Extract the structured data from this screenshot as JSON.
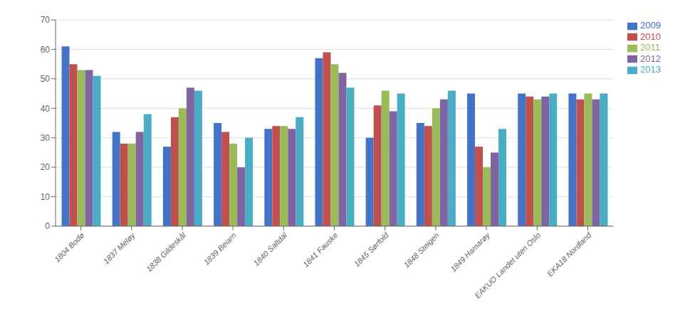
{
  "chart_data": {
    "type": "bar",
    "categories": [
      "1804 Bodø",
      "1837 Meløy",
      "1838 Gildeskål",
      "1839 Beiarn",
      "1840 Saltdal",
      "1841 Fauske",
      "1845 Sørfold",
      "1848 Steigen",
      "1849 Hamarøy",
      "EAKUO Landet uten Oslo",
      "EKA18 Nordland"
    ],
    "series": [
      {
        "name": "2009",
        "color": "#4472C4",
        "values": [
          61,
          32,
          27,
          35,
          33,
          57,
          30,
          35,
          45,
          45,
          45
        ]
      },
      {
        "name": "2010",
        "color": "#C0504D",
        "values": [
          55,
          28,
          37,
          32,
          34,
          59,
          41,
          34,
          27,
          44,
          43
        ]
      },
      {
        "name": "2011",
        "color": "#9BBB59",
        "values": [
          53,
          28,
          40,
          28,
          34,
          55,
          46,
          40,
          20,
          43,
          45
        ]
      },
      {
        "name": "2012",
        "color": "#8064A2",
        "values": [
          53,
          32,
          47,
          20,
          33,
          52,
          39,
          43,
          25,
          44,
          43
        ]
      },
      {
        "name": "2013",
        "color": "#4BACC6",
        "values": [
          51,
          38,
          46,
          30,
          37,
          47,
          45,
          46,
          33,
          45,
          45
        ]
      }
    ],
    "ylim": [
      0,
      70
    ],
    "yticks": [
      0,
      10,
      20,
      30,
      40,
      50,
      60,
      70
    ],
    "grid": true,
    "legend": "right"
  }
}
